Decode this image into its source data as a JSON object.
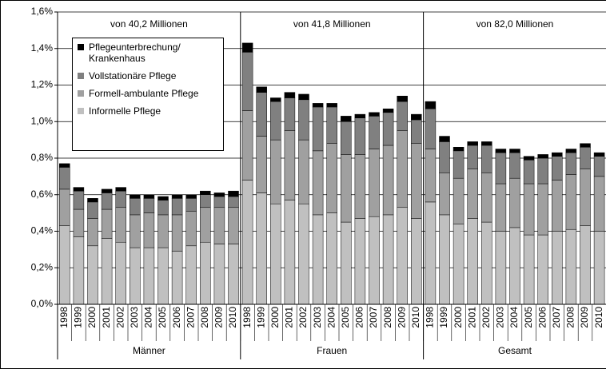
{
  "chart_data": {
    "type": "stacked-bar",
    "categories": [
      "1998",
      "1999",
      "2000",
      "2001",
      "2002",
      "2003",
      "2004",
      "2005",
      "2006",
      "2007",
      "2008",
      "2009",
      "2010",
      "1998",
      "1999",
      "2000",
      "2001",
      "2002",
      "2003",
      "2004",
      "2005",
      "2006",
      "2007",
      "2008",
      "2009",
      "2010",
      "1998",
      "1999",
      "2000",
      "2001",
      "2002",
      "2003",
      "2004",
      "2005",
      "2006",
      "2007",
      "2008",
      "2009",
      "2010"
    ],
    "groups": [
      {
        "name": "Männer",
        "annotation": "von 40,2 Millionen"
      },
      {
        "name": "Frauen",
        "annotation": "von 41,8 Millionen"
      },
      {
        "name": "Gesamt",
        "annotation": "von 82,0 Millionen"
      }
    ],
    "series": [
      {
        "name": "Informelle Pflege",
        "color": "#c0c0c0",
        "values": [
          0.43,
          0.37,
          0.32,
          0.36,
          0.34,
          0.31,
          0.31,
          0.31,
          0.29,
          0.32,
          0.34,
          0.33,
          0.33,
          0.68,
          0.61,
          0.55,
          0.57,
          0.55,
          0.49,
          0.5,
          0.45,
          0.47,
          0.48,
          0.49,
          0.53,
          0.47,
          0.56,
          0.49,
          0.44,
          0.47,
          0.45,
          0.4,
          0.42,
          0.38,
          0.38,
          0.4,
          0.41,
          0.43,
          0.4
        ]
      },
      {
        "name": "Formell-ambulante Pflege",
        "color": "#a0a0a0",
        "values": [
          0.2,
          0.15,
          0.15,
          0.16,
          0.19,
          0.18,
          0.19,
          0.18,
          0.2,
          0.19,
          0.19,
          0.2,
          0.2,
          0.38,
          0.31,
          0.35,
          0.38,
          0.35,
          0.35,
          0.38,
          0.37,
          0.35,
          0.37,
          0.38,
          0.42,
          0.41,
          0.29,
          0.23,
          0.25,
          0.27,
          0.27,
          0.26,
          0.27,
          0.28,
          0.28,
          0.28,
          0.3,
          0.31,
          0.3
        ]
      },
      {
        "name": "Vollstationäre Pflege",
        "color": "#808080",
        "values": [
          0.12,
          0.1,
          0.09,
          0.09,
          0.09,
          0.09,
          0.08,
          0.08,
          0.09,
          0.07,
          0.07,
          0.06,
          0.06,
          0.32,
          0.24,
          0.21,
          0.18,
          0.22,
          0.24,
          0.2,
          0.18,
          0.2,
          0.18,
          0.18,
          0.16,
          0.13,
          0.22,
          0.17,
          0.15,
          0.13,
          0.15,
          0.17,
          0.14,
          0.13,
          0.14,
          0.13,
          0.12,
          0.12,
          0.11
        ]
      },
      {
        "name": "Pflegeunterbrechung/ Krankenhaus",
        "color": "#000000",
        "values": [
          0.02,
          0.02,
          0.02,
          0.02,
          0.02,
          0.02,
          0.02,
          0.02,
          0.02,
          0.02,
          0.02,
          0.02,
          0.03,
          0.05,
          0.03,
          0.02,
          0.03,
          0.03,
          0.02,
          0.02,
          0.03,
          0.02,
          0.02,
          0.02,
          0.03,
          0.03,
          0.04,
          0.03,
          0.02,
          0.02,
          0.02,
          0.02,
          0.02,
          0.02,
          0.02,
          0.02,
          0.02,
          0.02,
          0.02
        ]
      }
    ],
    "ylim": [
      0,
      1.6
    ],
    "yticks": [
      {
        "value": 0,
        "label": "0,0%"
      },
      {
        "value": 0.2,
        "label": "0,2%"
      },
      {
        "value": 0.4,
        "label": "0,4%"
      },
      {
        "value": 0.6,
        "label": "0,6%"
      },
      {
        "value": 0.8,
        "label": "0,8%"
      },
      {
        "value": 1.0,
        "label": "1,0%"
      },
      {
        "value": 1.2,
        "label": "1,2%"
      },
      {
        "value": 1.4,
        "label": "1,4%"
      },
      {
        "value": 1.6,
        "label": "1,6%"
      }
    ],
    "grid": true
  }
}
